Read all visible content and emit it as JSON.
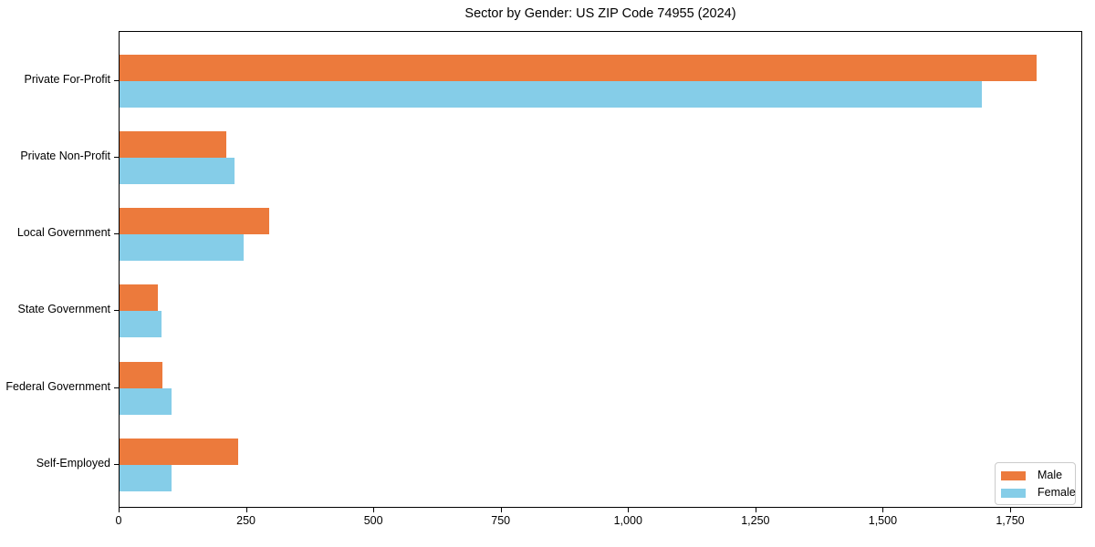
{
  "chart_data": {
    "type": "bar",
    "orientation": "horizontal",
    "title": "Sector by Gender: US ZIP Code 74955 (2024)",
    "categories": [
      "Private For-Profit",
      "Private Non-Profit",
      "Local Government",
      "State Government",
      "Federal Government",
      "Self-Employed"
    ],
    "series": [
      {
        "name": "Male",
        "color": "#ec7a3c",
        "values": [
          1800,
          210,
          293,
          75,
          84,
          232
        ]
      },
      {
        "name": "Female",
        "color": "#85cde8",
        "values": [
          1693,
          225,
          244,
          82,
          102,
          102
        ]
      }
    ],
    "xlabel": "",
    "ylabel": "",
    "xlim": [
      0,
      1888
    ],
    "xticks": [
      0,
      250,
      500,
      750,
      1000,
      1250,
      1500,
      1750
    ],
    "xtick_labels": [
      "0",
      "250",
      "500",
      "750",
      "1,000",
      "1,250",
      "1,500",
      "1,750"
    ],
    "grid": false,
    "background_color": "#ffffff",
    "axis_color": "#000000",
    "legend": {
      "position": "lower right",
      "border_color": "#cbcbcb",
      "entries": [
        "Male",
        "Female"
      ]
    }
  }
}
